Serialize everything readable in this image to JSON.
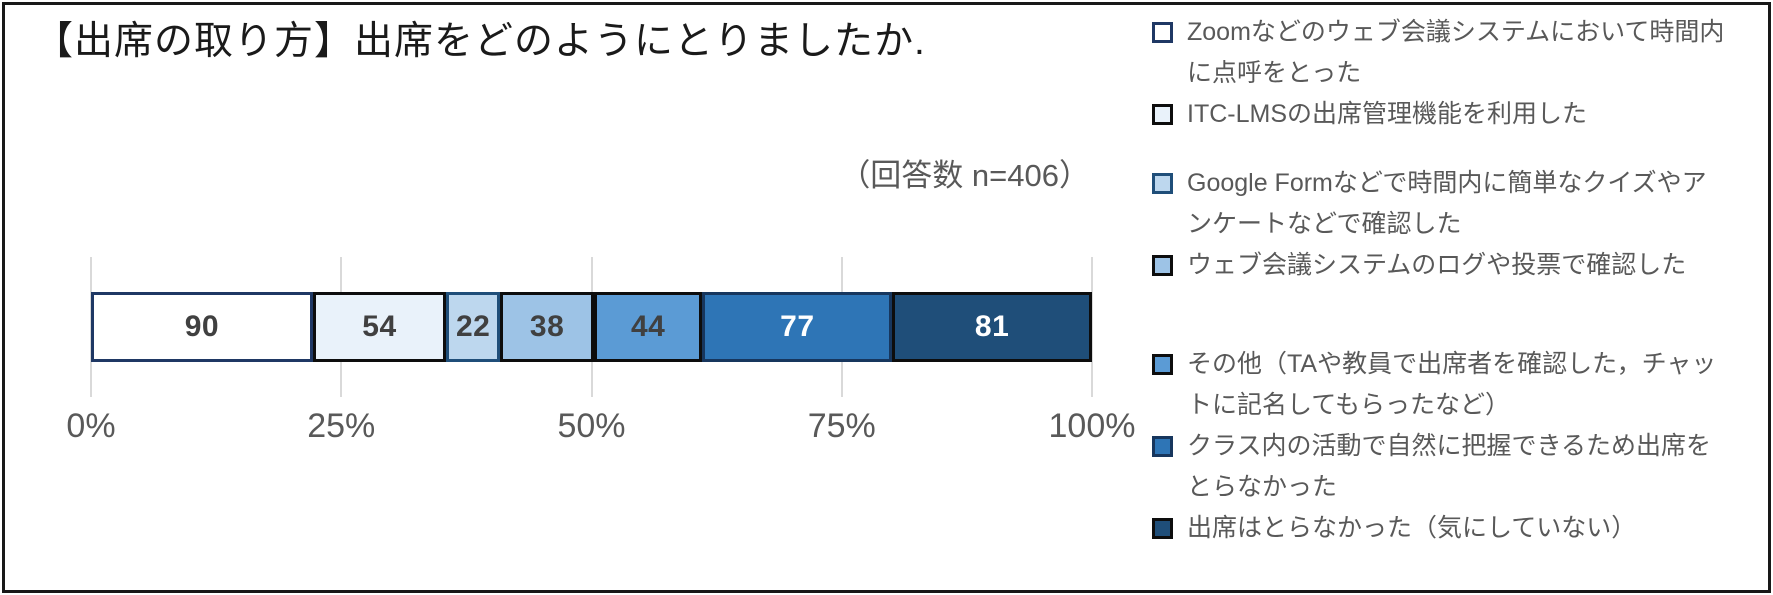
{
  "title": "【出席の取り方】出席をどのようにとりましたか.",
  "note": "（回答数 n=406）",
  "colors": {
    "gridline": "#d9d9d9",
    "axis_text": "#595959",
    "legend_text": "#595959",
    "title_text": "#1a1a1a",
    "frame_border": "#181818"
  },
  "chart_data": {
    "type": "bar",
    "stacked": true,
    "orientation": "horizontal",
    "title": "【出席の取り方】出席をどのようにとりましたか.",
    "annotation": "（回答数 n=406）",
    "n_total": 406,
    "x_axis": {
      "ticks": [
        "0%",
        "25%",
        "50%",
        "75%",
        "100%"
      ],
      "range": [
        0,
        100
      ],
      "unit": "percent"
    },
    "grid": true,
    "legend_position": "right",
    "series": [
      {
        "label": "Zoomなどのウェブ会議システムにおいて時間内に点呼をとった",
        "value": 90,
        "fill": "#ffffff",
        "border": "#1f3864",
        "text_color": "#404040"
      },
      {
        "label": "ITC-LMSの出席管理機能を利用した",
        "value": 54,
        "fill": "#e9f2fa",
        "border": "#0d0d0d",
        "text_color": "#404040"
      },
      {
        "label": "Google Formなどで時間内に簡単なクイズやアンケートなどで確認した",
        "value": 22,
        "fill": "#bdd7ee",
        "border": "#1f4e79",
        "text_color": "#404040"
      },
      {
        "label": "ウェブ会議システムのログや投票で確認した",
        "value": 38,
        "fill": "#9dc3e6",
        "border": "#0d0d0d",
        "text_color": "#404040"
      },
      {
        "label": "その他（TAや教員で出席者を確認した，チャットに記名してもらったなど）",
        "value": 44,
        "fill": "#5b9bd5",
        "border": "#0d0d0d",
        "text_color": "#404040"
      },
      {
        "label": "クラス内の活動で自然に把握できるため出席をとらなかった",
        "value": 77,
        "fill": "#2e75b6",
        "border": "#17365d",
        "text_color": "#ffffff"
      },
      {
        "label": "出席はとらなかった（気にしていない）",
        "value": 81,
        "fill": "#1f4e79",
        "border": "#0d0d0d",
        "text_color": "#ffffff"
      }
    ]
  },
  "legend": {
    "groups": [
      [
        0,
        1
      ],
      [
        2,
        3
      ],
      [
        4,
        5,
        6
      ]
    ],
    "items": [
      {
        "lines": [
          "Zoomなどのウェブ会議システムにおいて時間内",
          "に点呼をとった"
        ]
      },
      {
        "lines": [
          "ITC-LMSの出席管理機能を利用した"
        ]
      },
      {
        "lines": [
          "Google Formなどで時間内に簡単なクイズやア",
          "ンケートなどで確認した"
        ]
      },
      {
        "lines": [
          "ウェブ会議システムのログや投票で確認した"
        ]
      },
      {
        "lines": [
          "その他（TAや教員で出席者を確認した，チャッ",
          "トに記名してもらったなど）"
        ]
      },
      {
        "lines": [
          "クラス内の活動で自然に把握できるため出席を",
          "とらなかった"
        ]
      },
      {
        "lines": [
          "出席はとらなかった（気にしていない）"
        ]
      }
    ]
  }
}
